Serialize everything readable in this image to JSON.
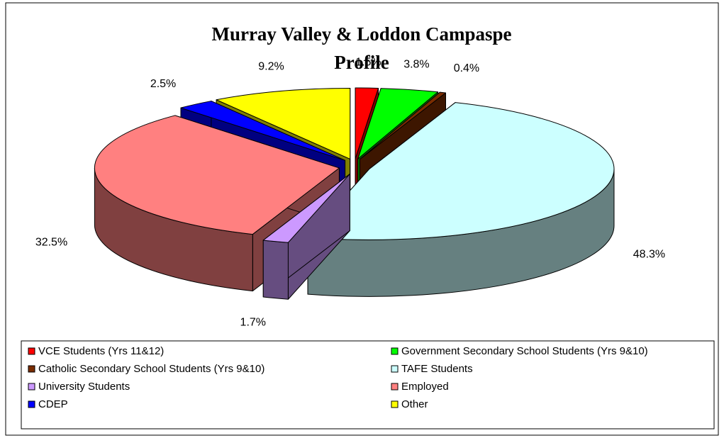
{
  "chart_data": {
    "type": "pie3d",
    "title": "Murray Valley & Loddon Campaspe Profile",
    "categories": [
      "VCE Students (Yrs 11&12)",
      "Government Secondary School Students (Yrs 9&10)",
      "Catholic Secondary School Students (Yrs 9&10)",
      "TAFE Students",
      "University Students",
      "Employed",
      "CDEP",
      "Other"
    ],
    "values": [
      1.5,
      3.8,
      0.4,
      48.3,
      1.7,
      32.5,
      2.5,
      9.2
    ],
    "value_labels": [
      "1.5%",
      "3.8%",
      "0.4%",
      "48.3%",
      "1.7%",
      "32.5%",
      "2.5%",
      "9.2%"
    ],
    "colors": [
      "#ff0000",
      "#00ff00",
      "#7a2c00",
      "#ccffff",
      "#cc99ff",
      "#ff8080",
      "#0000ff",
      "#ffff00"
    ],
    "legend": "bottom"
  }
}
